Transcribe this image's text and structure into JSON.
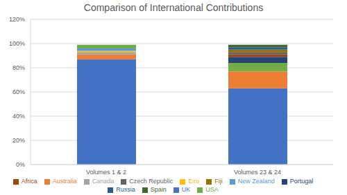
{
  "chart_data": {
    "type": "bar",
    "title": "Comparison of International Contributions",
    "categories": [
      "Volumes 1 & 2",
      "Volumes 23 & 24"
    ],
    "stacked": true,
    "grid": true,
    "legend": "bottom",
    "ylim": [
      0,
      120
    ],
    "yticks": [
      {
        "value": 0,
        "label": "0%"
      },
      {
        "value": 20,
        "label": "20%"
      },
      {
        "value": 40,
        "label": "40%"
      },
      {
        "value": 60,
        "label": "60%"
      },
      {
        "value": 80,
        "label": "80%"
      },
      {
        "value": 100,
        "label": "100%"
      },
      {
        "value": 120,
        "label": "120%"
      }
    ],
    "series": [
      {
        "name": "UK",
        "color": "#4472c4",
        "values": [
          87,
          63
        ]
      },
      {
        "name": "Australia",
        "color": "#ed7d31",
        "values": [
          4,
          14
        ]
      },
      {
        "name": "Canada",
        "color": "#a5a5a5",
        "values": [
          2,
          0
        ]
      },
      {
        "name": "Eire",
        "color": "#ffc000",
        "values": [
          1,
          0
        ]
      },
      {
        "name": "New Zealand",
        "color": "#5b9bd5",
        "values": [
          2,
          0
        ]
      },
      {
        "name": "USA",
        "color": "#70ad47",
        "values": [
          3,
          7
        ]
      },
      {
        "name": "Portugal",
        "color": "#264478",
        "values": [
          0,
          5
        ]
      },
      {
        "name": "Africa",
        "color": "#9e480e",
        "values": [
          0,
          2
        ]
      },
      {
        "name": "Czech Republic",
        "color": "#636363",
        "values": [
          0,
          2
        ]
      },
      {
        "name": "Fiji",
        "color": "#997300",
        "values": [
          0,
          2
        ]
      },
      {
        "name": "Russia",
        "color": "#255e91",
        "values": [
          0,
          2
        ]
      },
      {
        "name": "Spain",
        "color": "#43682b",
        "values": [
          0,
          2
        ]
      }
    ]
  }
}
